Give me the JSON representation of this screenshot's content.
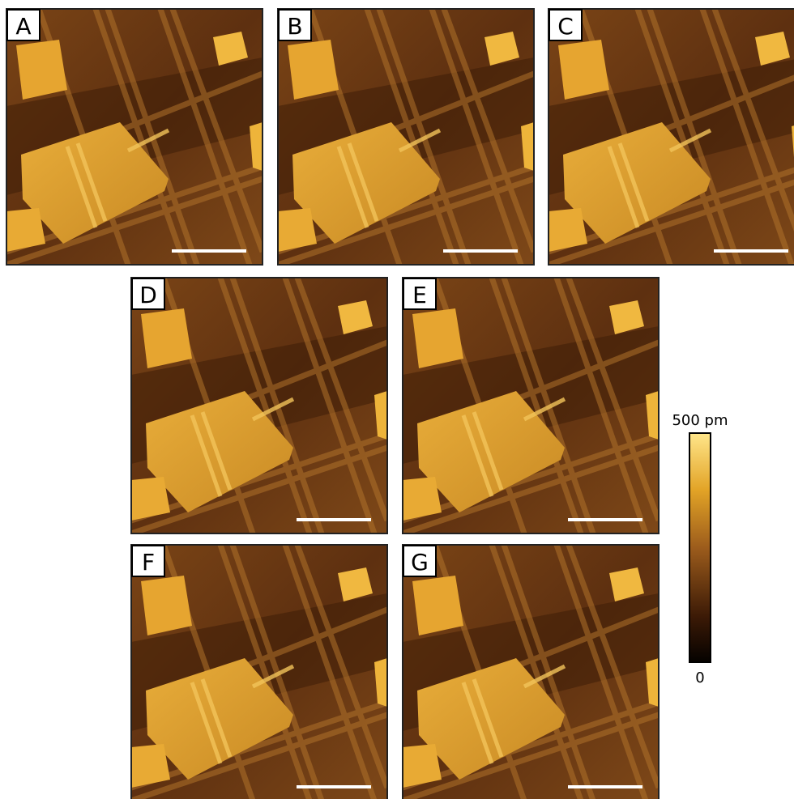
{
  "panels": [
    {
      "label": "A"
    },
    {
      "label": "B"
    },
    {
      "label": "C"
    },
    {
      "label": "D"
    },
    {
      "label": "E"
    },
    {
      "label": "F"
    },
    {
      "label": "G"
    }
  ],
  "colorbar": {
    "max_label": "500 pm",
    "min_label": "0"
  }
}
